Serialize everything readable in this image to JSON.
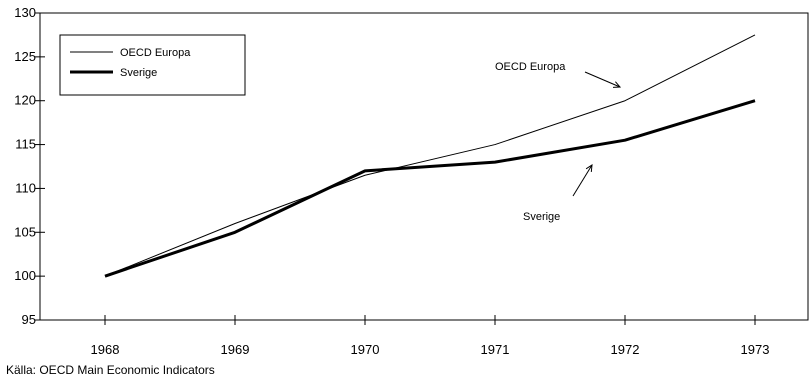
{
  "chart_data": {
    "type": "line",
    "title": "",
    "xlabel": "",
    "ylabel": "",
    "categories": [
      "1968",
      "1969",
      "1970",
      "1971",
      "1972",
      "1973"
    ],
    "series": [
      {
        "name": "OECD Europa",
        "values": [
          100,
          106,
          111.5,
          115,
          120,
          127.5
        ],
        "color": "#000000",
        "style": "thin"
      },
      {
        "name": "Sverige",
        "values": [
          100,
          105,
          112,
          113,
          115.5,
          120
        ],
        "color": "#000000",
        "style": "thick"
      }
    ],
    "ylim": [
      95,
      130
    ],
    "yticks": [
      "95",
      "100",
      "105",
      "110",
      "115",
      "120",
      "125",
      "130"
    ],
    "grid": false,
    "legend": "top-left",
    "annotations": [
      {
        "text": "OECD Europa",
        "series": "OECD Europa"
      },
      {
        "text": "Sverige",
        "series": "Sverige"
      }
    ]
  },
  "source": "Källa: OECD Main Economic Indicators"
}
